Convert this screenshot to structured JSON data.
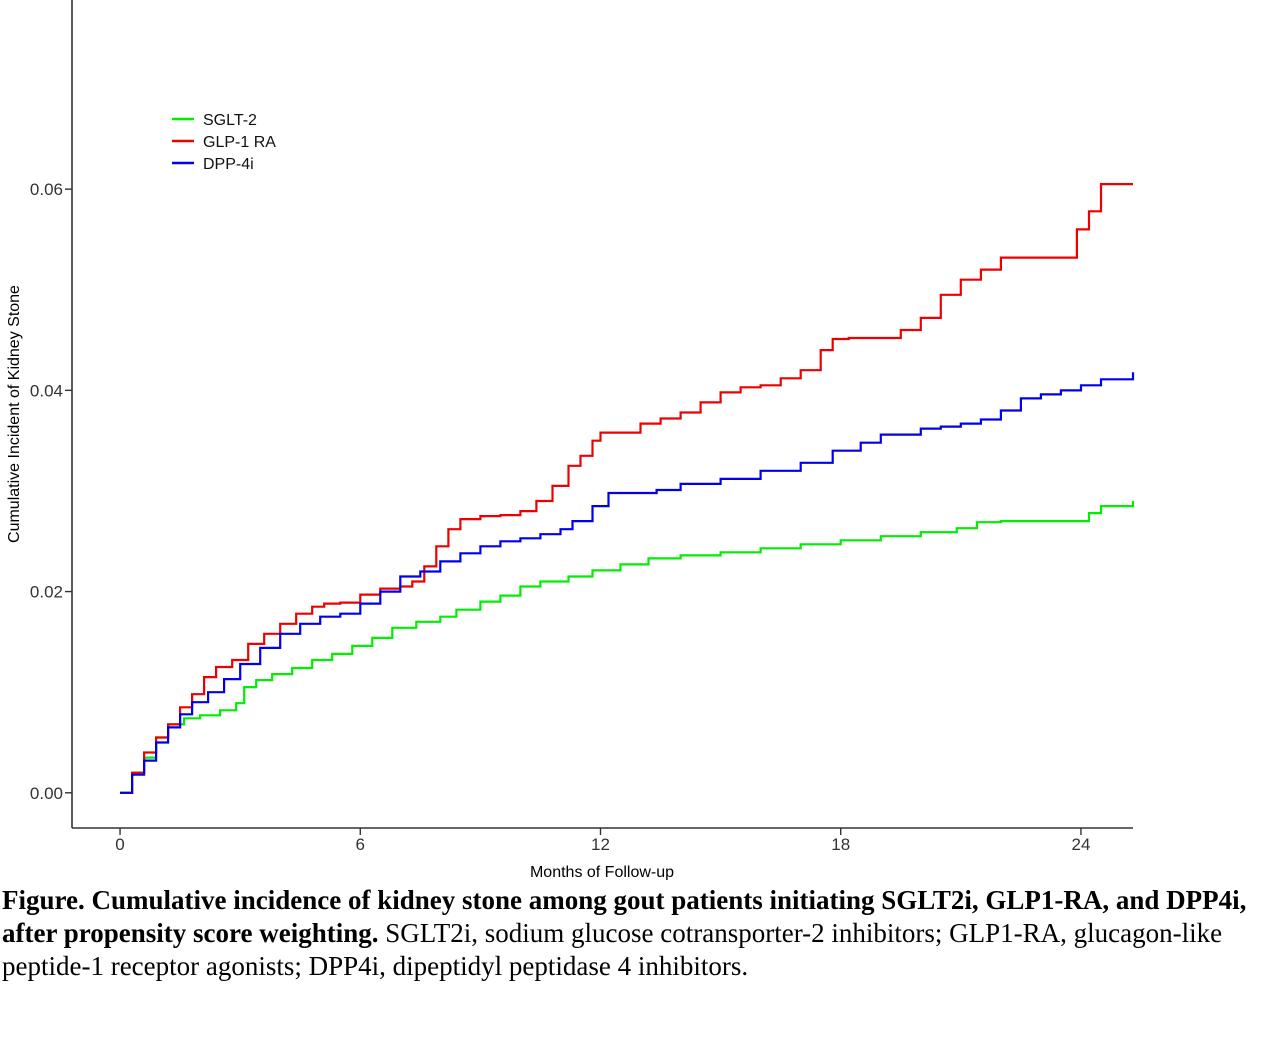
{
  "chart_data": {
    "type": "line",
    "step": true,
    "xlabel": "Months of Follow-up",
    "ylabel": "Cumulative Incident of Kidney Stone",
    "xlim": [
      -1.2,
      25.3
    ],
    "ylim": [
      -0.0035,
      0.0788
    ],
    "xticks": [
      0,
      6,
      12,
      18,
      24
    ],
    "xtick_labels": [
      "0",
      "6",
      "12",
      "18",
      "24"
    ],
    "yticks": [
      0.0,
      0.02,
      0.04,
      0.06
    ],
    "ytick_labels": [
      "0.00",
      "0.02",
      "0.04",
      "0.06"
    ],
    "legend_position": "top-left",
    "series": [
      {
        "name": "SGLT-2",
        "color": "#00ee00",
        "x": [
          0,
          0.3,
          0.6,
          0.9,
          1.2,
          1.6,
          2.0,
          2.5,
          2.9,
          3.1,
          3.4,
          3.8,
          4.3,
          4.8,
          5.3,
          5.8,
          6.3,
          6.8,
          7.4,
          8.0,
          8.4,
          9.0,
          9.5,
          10.0,
          10.5,
          11.2,
          11.8,
          12.5,
          13.2,
          14.0,
          15.0,
          16.0,
          17.0,
          18.0,
          19.0,
          20.0,
          20.9,
          21.4,
          22.0,
          23.0,
          23.9,
          24.2,
          24.5,
          25.3
        ],
        "y": [
          0,
          0.002,
          0.0035,
          0.0055,
          0.0068,
          0.0074,
          0.0077,
          0.0082,
          0.0089,
          0.0105,
          0.0112,
          0.0118,
          0.0124,
          0.0132,
          0.0138,
          0.0146,
          0.0154,
          0.0164,
          0.017,
          0.0175,
          0.0182,
          0.019,
          0.0196,
          0.0205,
          0.021,
          0.0215,
          0.0221,
          0.0227,
          0.0233,
          0.0236,
          0.0239,
          0.0243,
          0.0247,
          0.0251,
          0.0255,
          0.0259,
          0.0263,
          0.0269,
          0.027,
          0.027,
          0.027,
          0.0278,
          0.0285,
          0.029
        ]
      },
      {
        "name": "GLP-1 RA",
        "color": "#ee0000",
        "x": [
          0,
          0.3,
          0.6,
          0.9,
          1.2,
          1.5,
          1.8,
          2.1,
          2.4,
          2.8,
          3.2,
          3.6,
          4.0,
          4.4,
          4.8,
          5.1,
          5.5,
          6.0,
          6.5,
          7.0,
          7.3,
          7.6,
          7.9,
          8.2,
          8.5,
          9.0,
          9.5,
          10.0,
          10.4,
          10.8,
          11.2,
          11.5,
          11.8,
          12.0,
          12.5,
          13.0,
          13.5,
          14.0,
          14.5,
          15.0,
          15.5,
          16.0,
          16.5,
          17.0,
          17.5,
          17.8,
          18.2,
          19.0,
          19.5,
          20.0,
          20.5,
          21.0,
          21.5,
          22.0,
          22.5,
          23.0,
          23.5,
          23.9,
          24.2,
          24.5,
          25.3
        ],
        "y": [
          0,
          0.002,
          0.004,
          0.0055,
          0.0068,
          0.0085,
          0.0098,
          0.0115,
          0.0125,
          0.0132,
          0.0148,
          0.0158,
          0.0168,
          0.0178,
          0.0185,
          0.0188,
          0.0189,
          0.0197,
          0.0203,
          0.0205,
          0.021,
          0.0225,
          0.0245,
          0.0262,
          0.0272,
          0.0275,
          0.0276,
          0.028,
          0.029,
          0.0305,
          0.0325,
          0.0335,
          0.035,
          0.0358,
          0.0358,
          0.0367,
          0.0372,
          0.0378,
          0.0388,
          0.0398,
          0.0403,
          0.0405,
          0.0412,
          0.042,
          0.044,
          0.0451,
          0.0452,
          0.0452,
          0.046,
          0.0472,
          0.0495,
          0.051,
          0.052,
          0.0532,
          0.0532,
          0.0532,
          0.0532,
          0.056,
          0.0578,
          0.0605,
          0.0605
        ]
      },
      {
        "name": "DPP-4i",
        "color": "#0000ee",
        "x": [
          0,
          0.3,
          0.6,
          0.9,
          1.2,
          1.5,
          1.8,
          2.2,
          2.6,
          3.0,
          3.5,
          4.0,
          4.5,
          5.0,
          5.5,
          6.0,
          6.5,
          7.0,
          7.5,
          8.0,
          8.5,
          9.0,
          9.5,
          10.0,
          10.5,
          11.0,
          11.3,
          11.8,
          12.2,
          12.8,
          13.4,
          14.0,
          15.0,
          16.0,
          17.0,
          17.8,
          18.5,
          19.0,
          20.0,
          20.5,
          21.0,
          21.5,
          22.0,
          22.5,
          23.0,
          23.5,
          24.0,
          24.5,
          25.3
        ],
        "y": [
          0,
          0.0018,
          0.0032,
          0.005,
          0.0065,
          0.0078,
          0.009,
          0.01,
          0.0113,
          0.0128,
          0.0144,
          0.0158,
          0.0168,
          0.0175,
          0.0178,
          0.0188,
          0.02,
          0.0215,
          0.022,
          0.023,
          0.0238,
          0.0245,
          0.025,
          0.0253,
          0.0257,
          0.0262,
          0.027,
          0.0285,
          0.0298,
          0.0298,
          0.0301,
          0.0307,
          0.0312,
          0.032,
          0.0328,
          0.034,
          0.0348,
          0.0356,
          0.0362,
          0.0364,
          0.0367,
          0.0371,
          0.038,
          0.0392,
          0.0396,
          0.04,
          0.0405,
          0.0411,
          0.0418
        ]
      }
    ]
  },
  "caption": {
    "bold": "Figure. Cumulative incidence of kidney stone among gout patients initiating SGLT2i, GLP1-RA, and DPP4i, after propensity score weighting.",
    "normal": " SGLT2i, sodium glucose cotransporter-2 inhibitors; GLP1-RA, glucagon-like peptide-1 receptor agonists; DPP4i, dipeptidyl peptidase 4 inhibitors."
  }
}
